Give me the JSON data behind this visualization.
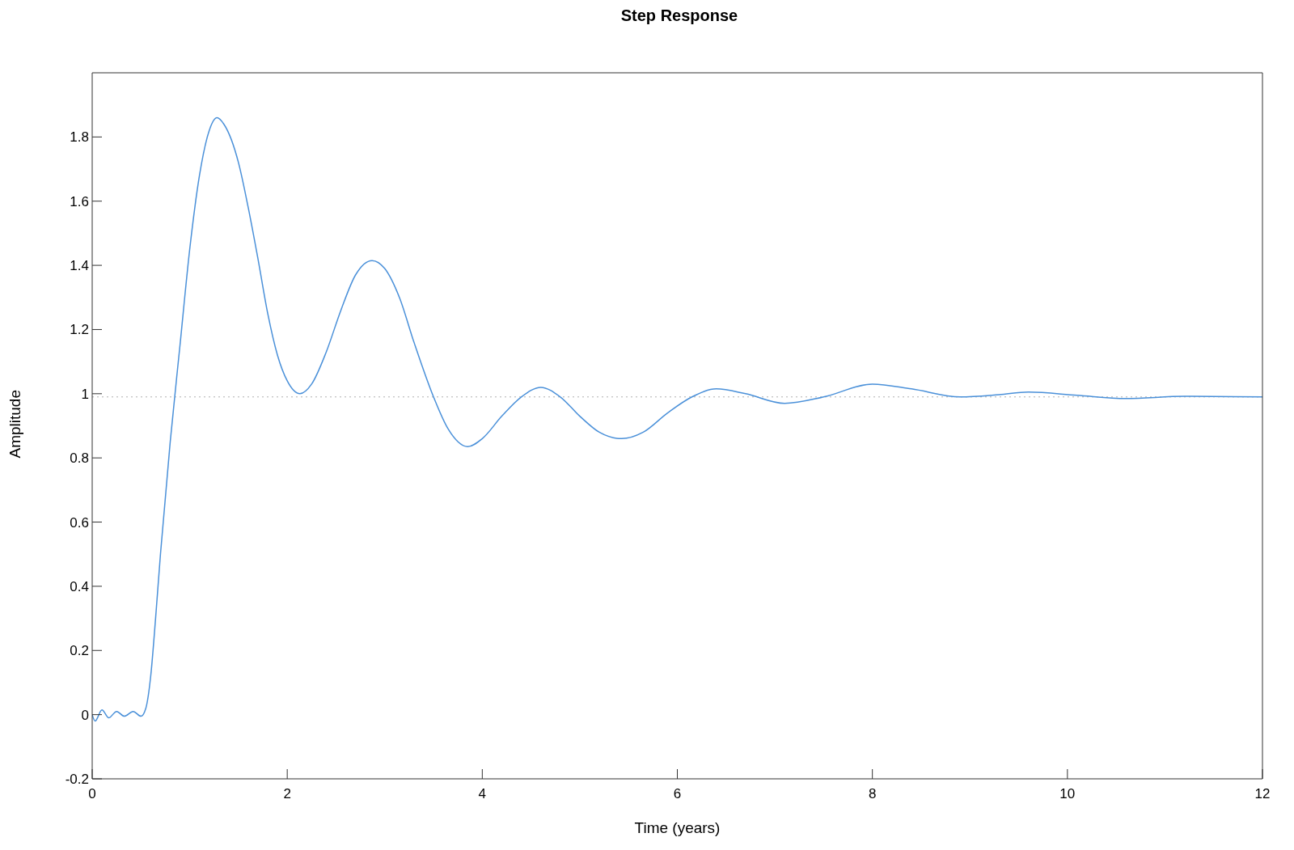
{
  "chart_data": {
    "type": "line",
    "title": "Step Response",
    "xlabel": "Time (years)",
    "ylabel": "Amplitude",
    "x": [
      0,
      0.03,
      0.1,
      0.17,
      0.25,
      0.33,
      0.42,
      0.5,
      0.55,
      0.6,
      0.65,
      0.7,
      0.8,
      0.9,
      1.0,
      1.1,
      1.2,
      1.28,
      1.35,
      1.5,
      1.6,
      1.7,
      1.8,
      1.9,
      2.0,
      2.13,
      2.25,
      2.4,
      2.55,
      2.7,
      2.87,
      3.0,
      3.15,
      3.3,
      3.5,
      3.65,
      3.85,
      4.0,
      4.2,
      4.4,
      4.6,
      4.8,
      5.0,
      5.2,
      5.43,
      5.65,
      5.9,
      6.15,
      6.4,
      6.7,
      7.1,
      7.5,
      8.0,
      8.4,
      8.9,
      9.3,
      9.6,
      10.1,
      10.6,
      11.2,
      12
    ],
    "series": [
      {
        "color": "#4a90d9",
        "values": [
          0,
          -0.02,
          0.015,
          -0.01,
          0.01,
          -0.005,
          0.01,
          -0.005,
          0.02,
          0.12,
          0.3,
          0.5,
          0.85,
          1.15,
          1.45,
          1.68,
          1.82,
          1.86,
          1.84,
          1.72,
          1.58,
          1.42,
          1.25,
          1.12,
          1.04,
          1.0,
          1.03,
          1.13,
          1.26,
          1.37,
          1.415,
          1.39,
          1.3,
          1.16,
          0.99,
          0.89,
          0.835,
          0.86,
          0.93,
          0.99,
          1.02,
          0.99,
          0.93,
          0.88,
          0.86,
          0.88,
          0.94,
          0.99,
          1.015,
          1.0,
          0.97,
          0.99,
          1.03,
          1.015,
          0.99,
          0.997,
          1.005,
          0.995,
          0.985,
          0.992,
          0.99
        ]
      }
    ],
    "xlim": [
      0,
      12
    ],
    "xticks": [
      0,
      2,
      4,
      6,
      8,
      10,
      12
    ],
    "ylim": [
      -0.2,
      2
    ],
    "yticks": [
      -0.2,
      0,
      0.2,
      0.4,
      0.6,
      0.8,
      1,
      1.2,
      1.4,
      1.6,
      1.8
    ],
    "ref_lines": [
      {
        "axis": "y",
        "value": 0.99,
        "color": "#b0b0b0",
        "line_style": "dotted"
      }
    ],
    "legend": false,
    "marker": "none",
    "line_style": "solid"
  }
}
